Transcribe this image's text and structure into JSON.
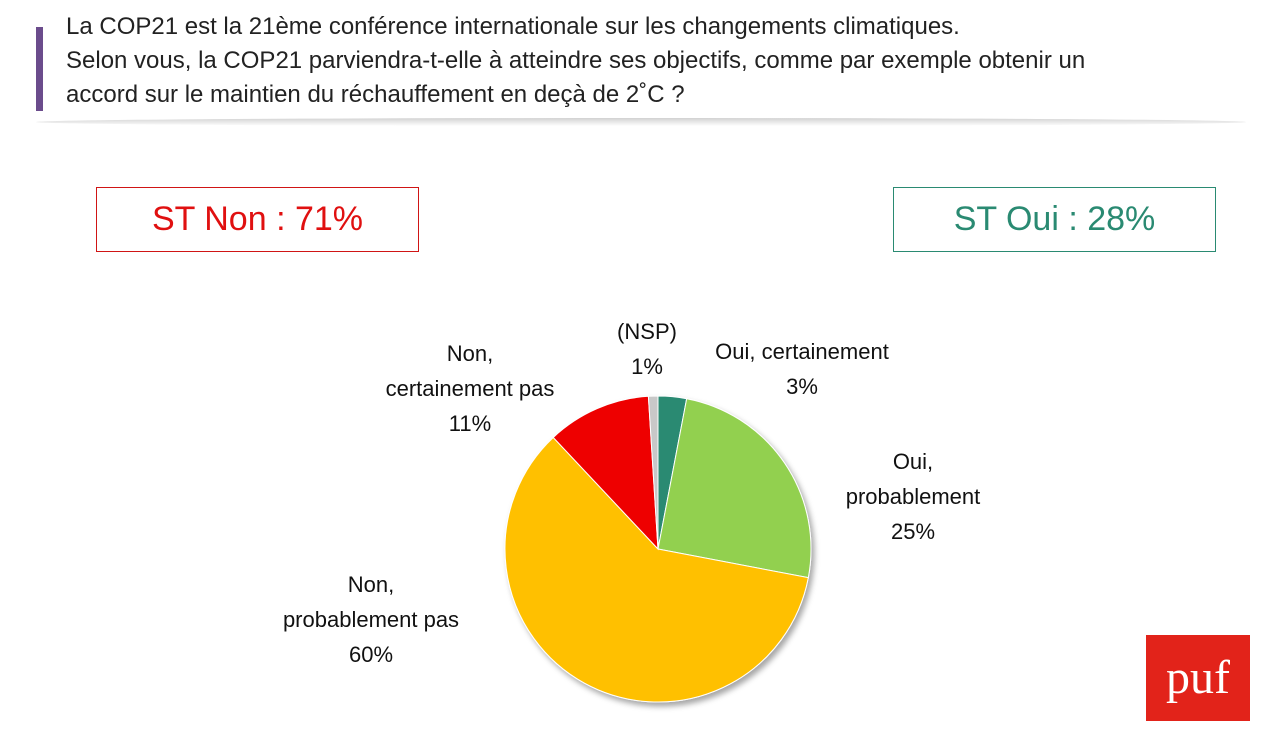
{
  "question": {
    "line1": "La COP21 est la 21ème conférence internationale sur les changements climatiques.",
    "line2": "Selon vous, la COP21 parviendra-t-elle à atteindre ses objectifs, comme par exemple obtenir un",
    "line3": "accord sur le maintien du réchauffement en deçà de 2˚C ?"
  },
  "summary": {
    "non": "ST Non : 71%",
    "oui": "ST Oui : 28%"
  },
  "chart_data": {
    "type": "pie",
    "slices": [
      {
        "name": "Oui, certainement",
        "value": 3,
        "label_lines": [
          "Oui, certainement",
          "3%"
        ],
        "color": "#2a8a72"
      },
      {
        "name": "Oui, probablement",
        "value": 25,
        "label_lines": [
          "Oui,",
          "probablement",
          "25%"
        ],
        "color": "#92d050"
      },
      {
        "name": "Non, probablement pas",
        "value": 60,
        "label_lines": [
          "Non,",
          "probablement pas",
          "60%"
        ],
        "color": "#ffc000"
      },
      {
        "name": "Non, certainement pas",
        "value": 11,
        "label_lines": [
          "Non,",
          "certainement pas",
          "11%"
        ],
        "color": "#ee0000"
      },
      {
        "name": "(NSP)",
        "value": 1,
        "label_lines": [
          "(NSP)",
          "1%"
        ],
        "color": "#c8c8c8"
      }
    ]
  },
  "logo": {
    "text": "puf",
    "color": "#e2231a"
  }
}
